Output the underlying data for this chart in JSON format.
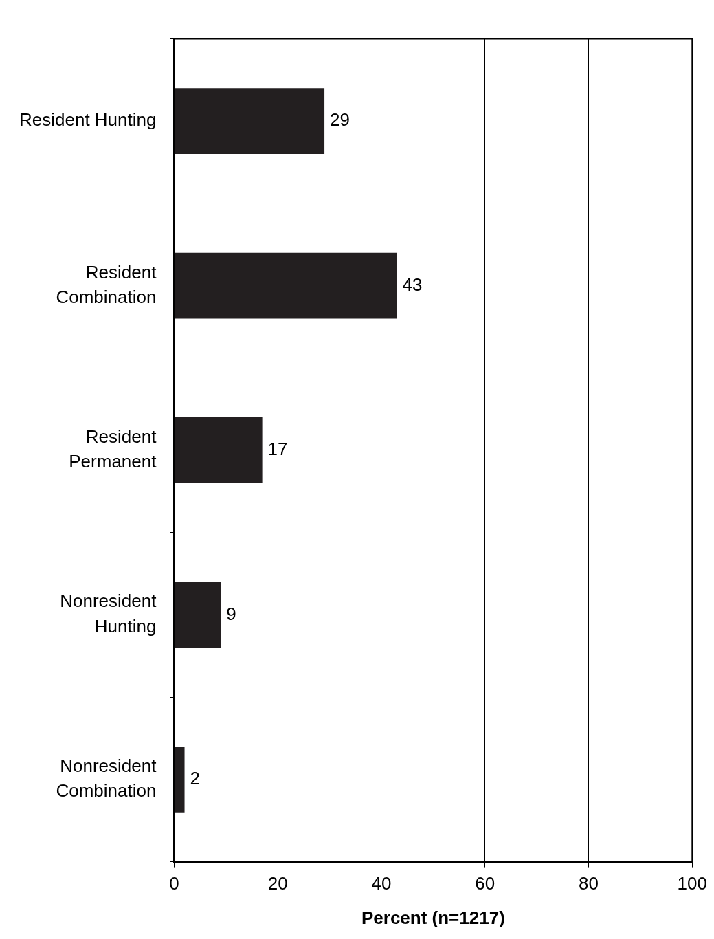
{
  "chart_data": {
    "type": "bar",
    "orientation": "horizontal",
    "xlabel": "Percent (n=1217)",
    "categories": [
      "Resident Hunting",
      "Resident\nCombination",
      "Resident\nPermanent",
      "Nonresident\nHunting",
      "Nonresident\nCombination"
    ],
    "values": [
      29,
      43,
      17,
      9,
      2
    ],
    "color": "#231f20",
    "xlim": [
      0,
      100
    ],
    "xticks": [
      0,
      20,
      40,
      60,
      80,
      100
    ],
    "grid": "x",
    "data_labels": true,
    "legend": false
  }
}
